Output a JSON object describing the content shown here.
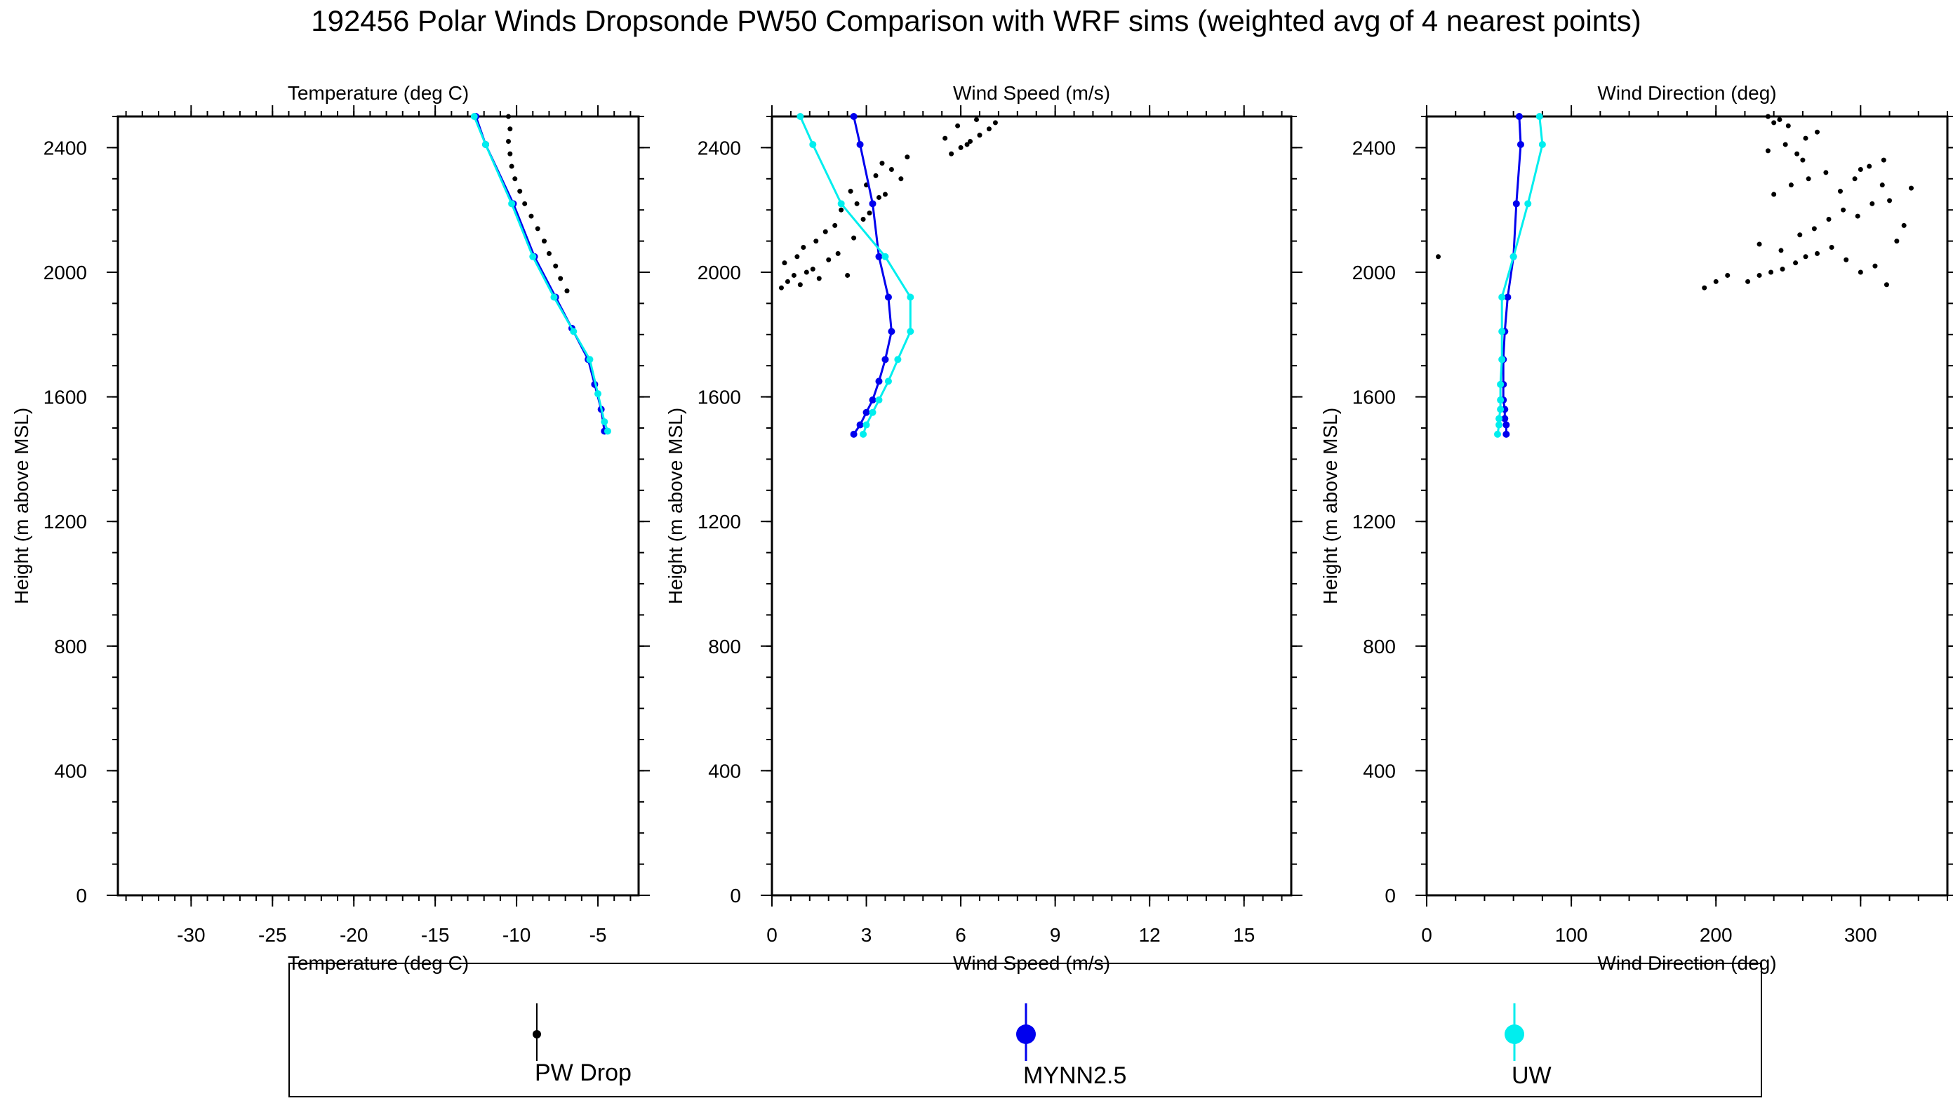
{
  "figure": {
    "title": "192456 Polar Winds Dropsonde PW50 Comparison with WRF sims (weighted avg of 4 nearest points)"
  },
  "legend": {
    "items": [
      {
        "label": "PW Drop",
        "color": "#000000",
        "marker": "dot"
      },
      {
        "label": "MYNN2.5",
        "color": "#0000ee",
        "marker": "dot"
      },
      {
        "label": "UW",
        "color": "#00eeee",
        "marker": "dot"
      }
    ]
  },
  "chart_data": [
    {
      "type": "line",
      "title": "Temperature (deg C)",
      "xlabel": "Temperature (deg C)",
      "ylabel": "Height (m above MSL)",
      "xlim": [
        -34.5,
        -2.5
      ],
      "ylim": [
        0,
        2500
      ],
      "xticks": [
        -30,
        -25,
        -20,
        -15,
        -10,
        -5
      ],
      "xtick_labels": [
        "-30",
        "-25",
        "-20",
        "-15",
        "-10",
        "-5"
      ],
      "yticks": [
        0,
        400,
        800,
        1200,
        1600,
        2000,
        2400
      ],
      "ytick_labels": [
        "0",
        "400",
        "800",
        "1200",
        "1600",
        "2000",
        "2400"
      ],
      "series": [
        {
          "name": "PW Drop",
          "color": "#000000",
          "style": "points",
          "x": [
            -10.5,
            -10.4,
            -10.5,
            -10.4,
            -10.3,
            -10.1,
            -9.8,
            -9.5,
            -9.1,
            -8.7,
            -8.3,
            -8.0,
            -7.6,
            -7.3,
            -6.9
          ],
          "y": [
            2500,
            2460,
            2420,
            2380,
            2340,
            2300,
            2260,
            2220,
            2180,
            2140,
            2100,
            2060,
            2020,
            1980,
            1940
          ]
        },
        {
          "name": "MYNN2.5",
          "color": "#0000ee",
          "style": "line-markers",
          "x": [
            -12.5,
            -11.9,
            -10.2,
            -8.9,
            -7.6,
            -6.6,
            -5.6,
            -5.2,
            -4.8,
            -4.6
          ],
          "y": [
            2500,
            2410,
            2220,
            2050,
            1920,
            1820,
            1720,
            1640,
            1560,
            1490
          ]
        },
        {
          "name": "UW",
          "color": "#00eeee",
          "style": "line-markers",
          "x": [
            -12.6,
            -11.9,
            -10.3,
            -9.0,
            -7.7,
            -6.5,
            -5.5,
            -5.0,
            -4.6,
            -4.4
          ],
          "y": [
            2500,
            2410,
            2220,
            2050,
            1920,
            1810,
            1720,
            1610,
            1520,
            1490
          ]
        }
      ]
    },
    {
      "type": "line",
      "title": "Wind Speed (m/s)",
      "xlabel": "Wind Speed (m/s)",
      "ylabel": "Height (m above MSL)",
      "xlim": [
        0,
        16.5
      ],
      "ylim": [
        0,
        2500
      ],
      "xticks": [
        0,
        3,
        6,
        9,
        12,
        15
      ],
      "xtick_labels": [
        "0",
        "3",
        "6",
        "9",
        "12",
        "15"
      ],
      "yticks": [
        0,
        400,
        800,
        1200,
        1600,
        2000,
        2400
      ],
      "ytick_labels": [
        "0",
        "400",
        "800",
        "1200",
        "1600",
        "2000",
        "2400"
      ],
      "series": [
        {
          "name": "PW Drop",
          "color": "#000000",
          "style": "points",
          "x": [
            0.3,
            0.5,
            0.7,
            0.9,
            1.1,
            0.4,
            0.8,
            1.3,
            1.5,
            1.8,
            1.0,
            1.4,
            2.1,
            2.4,
            1.7,
            2.0,
            2.6,
            2.9,
            2.2,
            2.7,
            3.1,
            3.4,
            2.5,
            3.0,
            3.6,
            3.3,
            3.8,
            4.1,
            3.5,
            4.3,
            5.7,
            6.0,
            6.3,
            6.6,
            6.9,
            5.9,
            6.5,
            7.1,
            6.2,
            5.5
          ],
          "y": [
            1950,
            1970,
            1990,
            1960,
            2000,
            2030,
            2050,
            2010,
            1980,
            2040,
            2080,
            2100,
            2060,
            1990,
            2130,
            2150,
            2110,
            2170,
            2200,
            2220,
            2190,
            2240,
            2260,
            2280,
            2250,
            2310,
            2330,
            2300,
            2350,
            2370,
            2380,
            2400,
            2420,
            2440,
            2460,
            2470,
            2490,
            2480,
            2410,
            2430
          ]
        },
        {
          "name": "MYNN2.5",
          "color": "#0000ee",
          "style": "line-markers",
          "x": [
            2.6,
            2.8,
            3.2,
            3.4,
            3.7,
            3.8,
            3.6,
            3.4,
            3.2,
            3.0,
            2.8,
            2.6
          ],
          "y": [
            2500,
            2410,
            2220,
            2050,
            1920,
            1810,
            1720,
            1650,
            1590,
            1550,
            1510,
            1480
          ]
        },
        {
          "name": "UW",
          "color": "#00eeee",
          "style": "line-markers",
          "x": [
            0.9,
            1.3,
            2.2,
            3.6,
            4.4,
            4.4,
            4.0,
            3.7,
            3.4,
            3.2,
            3.0,
            2.9
          ],
          "y": [
            2500,
            2410,
            2220,
            2050,
            1920,
            1810,
            1720,
            1650,
            1590,
            1550,
            1510,
            1480
          ]
        }
      ]
    },
    {
      "type": "line",
      "title": "Wind Direction (deg)",
      "xlabel": "Wind Direction (deg)",
      "ylabel": "Height (m above MSL)",
      "xlim": [
        0,
        360
      ],
      "ylim": [
        0,
        2500
      ],
      "xticks": [
        0,
        100,
        200,
        300
      ],
      "xtick_labels": [
        "0",
        "100",
        "200",
        "300"
      ],
      "yticks": [
        0,
        400,
        800,
        1200,
        1600,
        2000,
        2400
      ],
      "ytick_labels": [
        "0",
        "400",
        "800",
        "1200",
        "1600",
        "2000",
        "2400"
      ],
      "series": [
        {
          "name": "PW Drop",
          "color": "#000000",
          "style": "points",
          "x": [
            8,
            192,
            200,
            208,
            222,
            230,
            238,
            246,
            255,
            262,
            270,
            280,
            290,
            300,
            310,
            318,
            325,
            330,
            335,
            230,
            245,
            258,
            268,
            278,
            288,
            298,
            308,
            320,
            240,
            252,
            264,
            276,
            286,
            296,
            306,
            316,
            236,
            248,
            256,
            262,
            270,
            250,
            244,
            240,
            236,
            260,
            300,
            315
          ],
          "y": [
            2050,
            1950,
            1970,
            1990,
            1970,
            1990,
            2000,
            2010,
            2030,
            2050,
            2060,
            2080,
            2040,
            2000,
            2020,
            1960,
            2100,
            2150,
            2270,
            2090,
            2070,
            2120,
            2140,
            2170,
            2200,
            2180,
            2220,
            2230,
            2250,
            2280,
            2300,
            2320,
            2260,
            2300,
            2340,
            2360,
            2390,
            2410,
            2380,
            2430,
            2450,
            2470,
            2490,
            2480,
            2500,
            2360,
            2330,
            2280
          ]
        },
        {
          "name": "MYNN2.5",
          "color": "#0000ee",
          "style": "line-markers",
          "x": [
            64,
            65,
            62,
            60,
            56,
            54,
            53,
            53,
            53,
            54,
            54,
            55,
            55
          ],
          "y": [
            2500,
            2410,
            2220,
            2050,
            1920,
            1810,
            1720,
            1640,
            1590,
            1560,
            1530,
            1510,
            1480
          ]
        },
        {
          "name": "UW",
          "color": "#00eeee",
          "style": "line-markers",
          "x": [
            78,
            80,
            70,
            60,
            52,
            52,
            52,
            51,
            51,
            51,
            50,
            50,
            49
          ],
          "y": [
            2500,
            2410,
            2220,
            2050,
            1920,
            1810,
            1720,
            1640,
            1590,
            1560,
            1530,
            1510,
            1480
          ]
        }
      ]
    }
  ]
}
